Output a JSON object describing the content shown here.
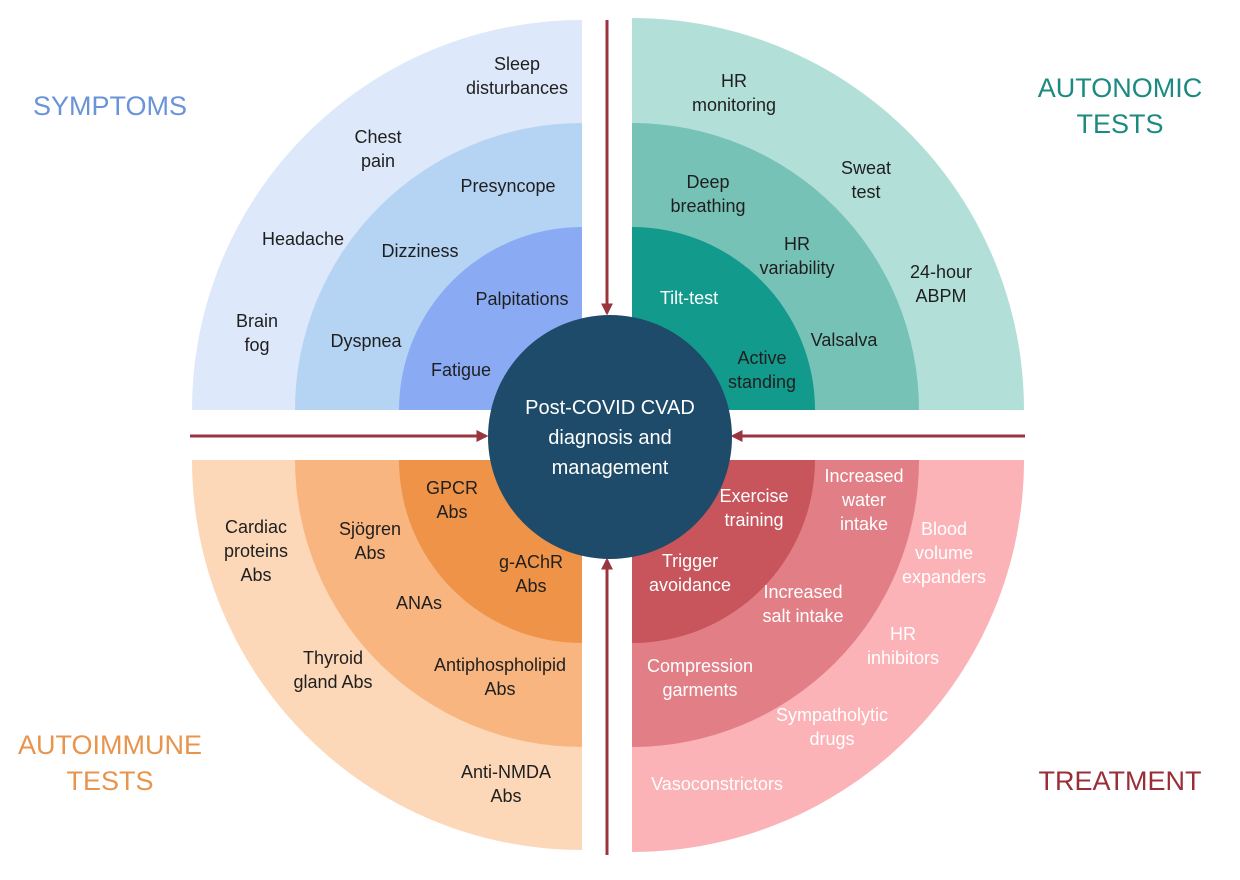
{
  "colors": {
    "symptoms": [
      "#dde8fa",
      "#b5d3f3",
      "#8aabf4"
    ],
    "autonomic": [
      "#b2e0d9",
      "#77c2b6",
      "#129a8c"
    ],
    "autoimmune": [
      "#fcd8b9",
      "#f8b57f",
      "#ee9347"
    ],
    "treatment": [
      "#fbb3b7",
      "#e27f86",
      "#c8545c"
    ],
    "center": "#1d4b69",
    "arrow": "#9a3540",
    "symptoms_title": "#6a93d8",
    "autonomic_title": "#1c8a80",
    "autoimmune_title": "#e8944d",
    "treatment_title": "#9a2e38"
  },
  "center": {
    "line1": "Post-COVID CVAD",
    "line2": "diagnosis and",
    "line3": "management"
  },
  "titles": {
    "symptoms": [
      "SYMPTOMS"
    ],
    "autonomic": [
      "AUTONOMIC",
      "TESTS"
    ],
    "autoimmune": [
      "AUTOIMMUNE",
      "TESTS"
    ],
    "treatment": [
      "TREATMENT"
    ]
  },
  "symptoms": {
    "outer": [
      [
        "Sleep",
        "disturbances"
      ],
      [
        "Chest",
        "pain"
      ],
      [
        "Headache"
      ],
      [
        "Brain",
        "fog"
      ]
    ],
    "middle": [
      [
        "Presyncope"
      ],
      [
        "Dizziness"
      ],
      [
        "Dyspnea"
      ]
    ],
    "inner": [
      [
        "Palpitations"
      ],
      [
        "Fatigue"
      ]
    ]
  },
  "autonomic": {
    "outer": [
      [
        "HR",
        "monitoring"
      ],
      [
        "Sweat",
        "test"
      ],
      [
        "24-hour",
        "ABPM"
      ]
    ],
    "middle": [
      [
        "Deep",
        "breathing"
      ],
      [
        "HR",
        "variability"
      ],
      [
        "Valsalva"
      ]
    ],
    "inner": [
      [
        "Tilt-test"
      ],
      [
        "Active",
        "standing"
      ]
    ]
  },
  "autoimmune": {
    "outer": [
      [
        "Cardiac",
        "proteins",
        "Abs"
      ],
      [
        "Thyroid",
        "gland Abs"
      ],
      [
        "Anti-NMDA",
        "Abs"
      ]
    ],
    "middle": [
      [
        "Sjögren",
        "Abs"
      ],
      [
        "ANAs"
      ],
      [
        "Antiphospholipid",
        "Abs"
      ]
    ],
    "inner": [
      [
        "GPCR",
        "Abs"
      ],
      [
        "g-AChR",
        "Abs"
      ]
    ]
  },
  "treatment": {
    "outer": [
      [
        "Increased",
        "water",
        "intake"
      ],
      [
        "Blood",
        "volume",
        "expanders"
      ],
      [
        "HR",
        "inhibitors"
      ],
      [
        "Sympatholytic",
        "drugs"
      ],
      [
        "Vasoconstrictors"
      ]
    ],
    "middle": [
      [
        "Exercise",
        "training"
      ],
      [
        "Increased",
        "salt intake"
      ],
      [
        "Compression",
        "garments"
      ]
    ],
    "inner": [
      [
        "Trigger",
        "avoidance"
      ]
    ]
  }
}
